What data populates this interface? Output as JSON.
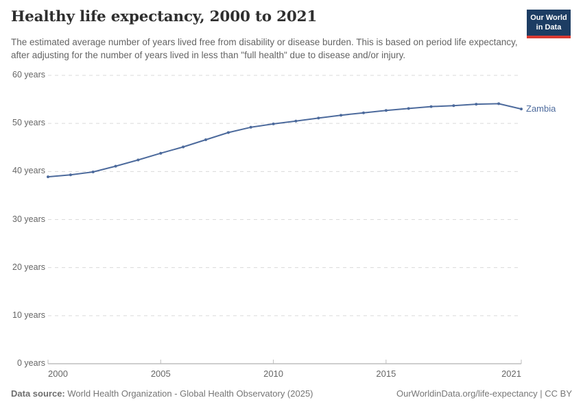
{
  "header": {
    "title": "Healthy life expectancy, 2000 to 2021",
    "subtitle": "The estimated average number of years lived free from disability or disease burden. This is based on period life expectancy, after adjusting for the number of years lived in less than \"full health\" due to disease and/or injury.",
    "logo": {
      "line1": "Our World",
      "line2": "in Data"
    }
  },
  "chart_data": {
    "type": "line",
    "title": "Healthy life expectancy, 2000 to 2021",
    "xlabel": "",
    "ylabel": "",
    "xlim": [
      2000,
      2021
    ],
    "ylim": [
      0,
      60
    ],
    "grid": "horizontal-dashed",
    "legend_position": "line-end-label",
    "x": [
      2000,
      2001,
      2002,
      2003,
      2004,
      2005,
      2006,
      2007,
      2008,
      2009,
      2010,
      2011,
      2012,
      2013,
      2014,
      2015,
      2016,
      2017,
      2018,
      2019,
      2020,
      2021
    ],
    "series": [
      {
        "name": "Zambia",
        "color": "#4c6a9c",
        "values": [
          38.9,
          39.3,
          39.9,
          41.1,
          42.4,
          43.8,
          45.1,
          46.6,
          48.1,
          49.2,
          49.9,
          50.5,
          51.1,
          51.7,
          52.2,
          52.7,
          53.1,
          53.5,
          53.7,
          54.0,
          54.1,
          53.0
        ]
      }
    ],
    "y_ticks": [
      {
        "value": 0,
        "label": "0 years"
      },
      {
        "value": 10,
        "label": "10 years"
      },
      {
        "value": 20,
        "label": "20 years"
      },
      {
        "value": 30,
        "label": "30 years"
      },
      {
        "value": 40,
        "label": "40 years"
      },
      {
        "value": 50,
        "label": "50 years"
      },
      {
        "value": 60,
        "label": "60 years"
      }
    ],
    "x_ticks": [
      {
        "value": 2000,
        "label": "2000",
        "align": "left"
      },
      {
        "value": 2005,
        "label": "2005",
        "align": "center"
      },
      {
        "value": 2010,
        "label": "2010",
        "align": "center"
      },
      {
        "value": 2015,
        "label": "2015",
        "align": "center"
      },
      {
        "value": 2021,
        "label": "2021",
        "align": "right"
      }
    ]
  },
  "colors": {
    "line": "#4c6a9c",
    "gridline": "#dadada",
    "axis_line": "#9e9e9e",
    "tick_mark": "#bdbdbd",
    "logo_bg": "#1d3d63",
    "logo_bar": "#d93a32"
  },
  "footer": {
    "source_label": "Data source:",
    "source_text": " World Health Organization - Global Health Observatory (2025)",
    "link_text": "OurWorldinData.org/life-expectancy | CC BY"
  }
}
